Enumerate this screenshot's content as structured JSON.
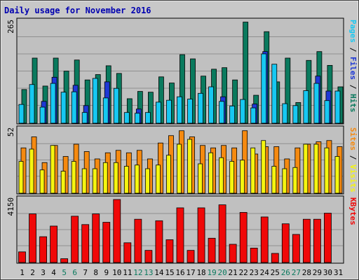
{
  "chart_data": {
    "type": "bar",
    "title": "Daily usage for November 2016",
    "x": [
      "1",
      "2",
      "3",
      "4",
      "5",
      "6",
      "7",
      "8",
      "9",
      "10",
      "11",
      "12",
      "13",
      "14",
      "15",
      "16",
      "17",
      "18",
      "19",
      "20",
      "21",
      "22",
      "23",
      "24",
      "25",
      "26",
      "27",
      "28",
      "29",
      "30",
      "31"
    ],
    "weekend_days": [
      "5",
      "6",
      "12",
      "13",
      "19",
      "20",
      "26",
      "27"
    ],
    "colors": {
      "hits": "#0a7a5e",
      "files": "#1e38d6",
      "pages": "#17c8f2",
      "visits": "#f58a10",
      "sites": "#f5f510",
      "kbytes": "#f00808",
      "weekday_label": "#000000",
      "weekend_label": "#0a7a5e",
      "background": "#c8c8c8",
      "plot": "#c0c0c0"
    },
    "panels": [
      {
        "ymax_label": "265",
        "ymax": 265,
        "right_label_parts": [
          {
            "text": "Pages",
            "color": "#17c8f2"
          },
          {
            "text": " / ",
            "color": "#000000"
          },
          {
            "text": "Files",
            "color": "#1e38d6"
          },
          {
            "text": " / ",
            "color": "#000000"
          },
          {
            "text": "Hits",
            "color": "#0a7a5e"
          }
        ],
        "series": [
          {
            "name": "Hits",
            "values": [
              88,
              170,
              97,
              170,
              136,
              165,
              113,
              127,
              150,
              130,
              64,
              83,
              81,
              121,
              105,
              179,
              168,
              123,
              141,
              145,
              113,
              264,
              73,
              239,
              108,
              170,
              54,
              164,
              187,
              151,
              95
            ]
          },
          {
            "name": "Files",
            "values": [
              0,
              0,
              57,
              120,
              0,
              99,
              46,
              0,
              108,
              0,
              0,
              37,
              0,
              0,
              0,
              0,
              0,
              0,
              0,
              69,
              0,
              0,
              50,
              187,
              0,
              0,
              0,
              0,
              123,
              84,
              0
            ]
          },
          {
            "name": "Pages",
            "values": [
              49,
              101,
              42,
              104,
              81,
              82,
              28,
              117,
              66,
              91,
              28,
              26,
              28,
              55,
              60,
              69,
              63,
              78,
              95,
              57,
              45,
              62,
              40,
              181,
              154,
              51,
              46,
              85,
              104,
              59,
              84
            ]
          }
        ]
      },
      {
        "ymax_label": "52",
        "ymax": 52,
        "right_label_parts": [
          {
            "text": "Sites",
            "color": "#f58a10"
          },
          {
            "text": " / ",
            "color": "#000000"
          },
          {
            "text": "Visits",
            "color": "#f5f510"
          }
        ],
        "series": [
          {
            "name": "Visits",
            "values": [
              37,
              46,
              25,
              39,
              30,
              40,
              34,
              28,
              33,
              35,
              33,
              35,
              28,
              41,
              47,
              51,
              46,
              39,
              37,
              39,
              37,
              51,
              32,
              38,
              38,
              28,
              37,
              40,
              42,
              43,
              38
            ]
          },
          {
            "name": "Sites",
            "values": [
              26,
              36,
              19,
              39,
              18,
              26,
              20,
              20,
              25,
              25,
              22,
              23,
              20,
              23,
              31,
              40,
              44,
              24,
              33,
              29,
              26,
              27,
              37,
              43,
              22,
              20,
              21,
              40,
              40,
              37,
              30
            ]
          }
        ]
      },
      {
        "ymax_label": "4150",
        "ymax": 4150,
        "right_label_parts": [
          {
            "text": "KBytes",
            "color": "#f00808"
          }
        ],
        "series": [
          {
            "name": "KBytes",
            "values": [
              700,
              3200,
              1700,
              2400,
              250,
              3050,
              2500,
              3200,
              2650,
              4150,
              1300,
              2850,
              800,
              2750,
              1500,
              3600,
              800,
              3600,
              1600,
              3800,
              1200,
              3300,
              950,
              3000,
              600,
              2550,
              1850,
              2850,
              2850,
              3250,
              0
            ]
          }
        ]
      }
    ]
  }
}
